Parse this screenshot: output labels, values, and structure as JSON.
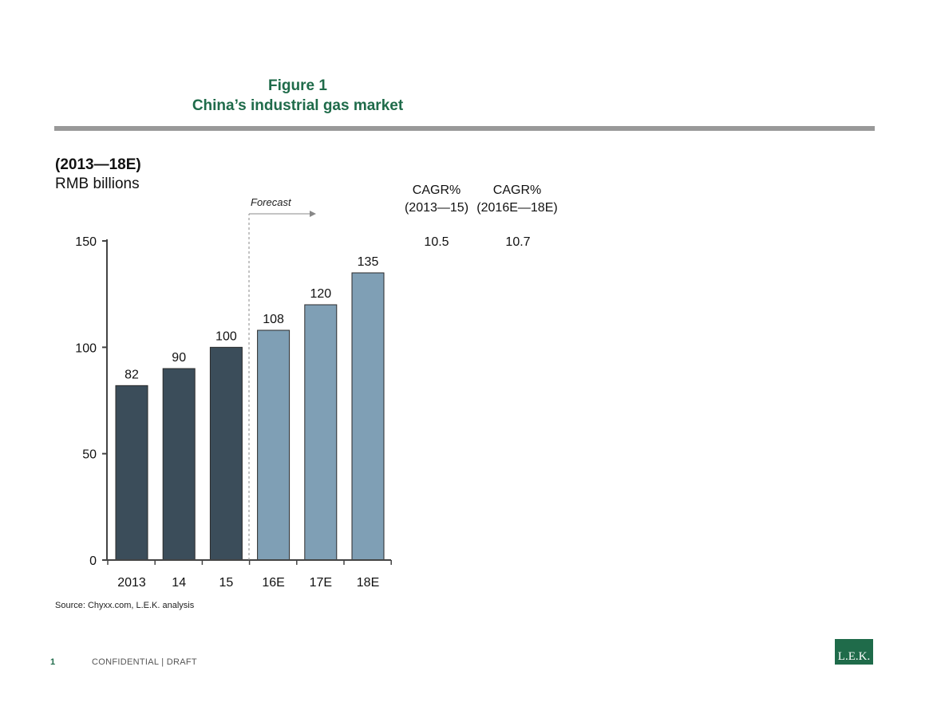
{
  "header": {
    "figure_label": "Figure 1",
    "figure_title": "China’s industrial gas market"
  },
  "subtitle": {
    "period": "(2013—18E)",
    "unit": "RMB billions"
  },
  "forecast_label": "Forecast",
  "cagr": [
    {
      "label": "CAGR%",
      "period": "(2013—15)",
      "value": "10.5"
    },
    {
      "label": "CAGR%",
      "period": "(2016E—18E)",
      "value": "10.7"
    }
  ],
  "chart_data": {
    "type": "bar",
    "categories": [
      "2013",
      "14",
      "15",
      "16E",
      "17E",
      "18E"
    ],
    "values": [
      82,
      90,
      100,
      108,
      120,
      135
    ],
    "data_labels": [
      "82",
      "90",
      "100",
      "108",
      "120",
      "135"
    ],
    "forecast": [
      false,
      false,
      false,
      true,
      true,
      true
    ],
    "title": "China’s industrial gas market",
    "ylim": [
      0,
      150
    ],
    "yticks": [
      0,
      50,
      100,
      150
    ],
    "ytick_labels": [
      "0",
      "50",
      "100",
      "150"
    ],
    "grid": false,
    "colors": {
      "actual": "#3b4d5a",
      "forecast": "#7f9fb5"
    }
  },
  "source": "Source:  Chyxx.com, L.E.K. analysis",
  "footer": {
    "page": "1",
    "text": "CONFIDENTIAL |  DRAFT",
    "logo": "L.E.K."
  }
}
